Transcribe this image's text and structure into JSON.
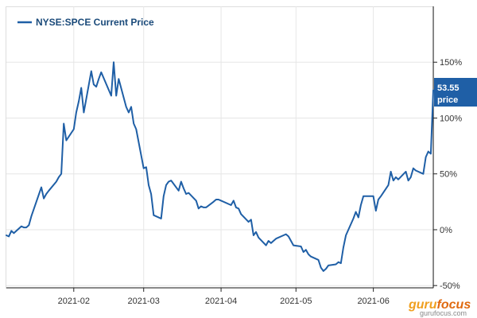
{
  "chart_data": {
    "type": "line",
    "title": "",
    "xlabel": "",
    "ylabel": "",
    "legend": "top-left",
    "grid": true,
    "x_range": [
      "2021-01-05",
      "2021-06-25"
    ],
    "ylim": [
      -0.52,
      2.0
    ],
    "x_ticks": [
      {
        "date": "2021-02-01",
        "label": "2021-02"
      },
      {
        "date": "2021-03-01",
        "label": "2021-03"
      },
      {
        "date": "2021-04-01",
        "label": "2021-04"
      },
      {
        "date": "2021-05-01",
        "label": "2021-05"
      },
      {
        "date": "2021-06-01",
        "label": "2021-06"
      }
    ],
    "y_ticks": [
      {
        "value": 1.5,
        "label": "150%"
      },
      {
        "value": 1.0,
        "label": "100%"
      },
      {
        "value": 0.5,
        "label": "50%"
      },
      {
        "value": 0.0,
        "label": "0%"
      },
      {
        "value": -0.5,
        "label": "-50%"
      }
    ],
    "series": [
      {
        "name": "NYSE:SPCE Current Price",
        "color": "#1f5fa6",
        "points": [
          [
            "2021-01-05",
            -0.05
          ],
          [
            "2021-01-06",
            -0.06
          ],
          [
            "2021-01-07",
            -0.01
          ],
          [
            "2021-01-08",
            -0.03
          ],
          [
            "2021-01-11",
            0.03
          ],
          [
            "2021-01-12",
            0.02
          ],
          [
            "2021-01-13",
            0.02
          ],
          [
            "2021-01-14",
            0.04
          ],
          [
            "2021-01-15",
            0.12
          ],
          [
            "2021-01-19",
            0.38
          ],
          [
            "2021-01-20",
            0.28
          ],
          [
            "2021-01-21",
            0.32
          ],
          [
            "2021-01-22",
            0.35
          ],
          [
            "2021-01-25",
            0.43
          ],
          [
            "2021-01-26",
            0.47
          ],
          [
            "2021-01-27",
            0.5
          ],
          [
            "2021-01-28",
            0.95
          ],
          [
            "2021-01-29",
            0.8
          ],
          [
            "2021-02-01",
            0.9
          ],
          [
            "2021-02-02",
            1.05
          ],
          [
            "2021-02-03",
            1.15
          ],
          [
            "2021-02-04",
            1.27
          ],
          [
            "2021-02-05",
            1.05
          ],
          [
            "2021-02-08",
            1.42
          ],
          [
            "2021-02-09",
            1.3
          ],
          [
            "2021-02-10",
            1.28
          ],
          [
            "2021-02-11",
            1.35
          ],
          [
            "2021-02-12",
            1.41
          ],
          [
            "2021-02-16",
            1.2
          ],
          [
            "2021-02-17",
            1.5
          ],
          [
            "2021-02-18",
            1.2
          ],
          [
            "2021-02-19",
            1.35
          ],
          [
            "2021-02-22",
            1.1
          ],
          [
            "2021-02-23",
            1.05
          ],
          [
            "2021-02-24",
            1.1
          ],
          [
            "2021-02-25",
            0.95
          ],
          [
            "2021-02-26",
            0.9
          ],
          [
            "2021-03-01",
            0.55
          ],
          [
            "2021-03-02",
            0.56
          ],
          [
            "2021-03-03",
            0.4
          ],
          [
            "2021-03-04",
            0.32
          ],
          [
            "2021-03-05",
            0.13
          ],
          [
            "2021-03-08",
            0.1
          ],
          [
            "2021-03-09",
            0.3
          ],
          [
            "2021-03-10",
            0.4
          ],
          [
            "2021-03-11",
            0.43
          ],
          [
            "2021-03-12",
            0.44
          ],
          [
            "2021-03-15",
            0.35
          ],
          [
            "2021-03-16",
            0.43
          ],
          [
            "2021-03-17",
            0.37
          ],
          [
            "2021-03-18",
            0.32
          ],
          [
            "2021-03-19",
            0.33
          ],
          [
            "2021-03-22",
            0.26
          ],
          [
            "2021-03-23",
            0.19
          ],
          [
            "2021-03-24",
            0.21
          ],
          [
            "2021-03-25",
            0.2
          ],
          [
            "2021-03-26",
            0.2
          ],
          [
            "2021-03-29",
            0.25
          ],
          [
            "2021-03-30",
            0.27
          ],
          [
            "2021-03-31",
            0.27
          ],
          [
            "2021-04-01",
            0.26
          ],
          [
            "2021-04-05",
            0.22
          ],
          [
            "2021-04-06",
            0.26
          ],
          [
            "2021-04-07",
            0.2
          ],
          [
            "2021-04-08",
            0.19
          ],
          [
            "2021-04-09",
            0.14
          ],
          [
            "2021-04-12",
            0.07
          ],
          [
            "2021-04-13",
            0.09
          ],
          [
            "2021-04-14",
            -0.05
          ],
          [
            "2021-04-15",
            -0.02
          ],
          [
            "2021-04-16",
            -0.07
          ],
          [
            "2021-04-19",
            -0.14
          ],
          [
            "2021-04-20",
            -0.1
          ],
          [
            "2021-04-21",
            -0.12
          ],
          [
            "2021-04-22",
            -0.1
          ],
          [
            "2021-04-23",
            -0.08
          ],
          [
            "2021-04-26",
            -0.05
          ],
          [
            "2021-04-27",
            -0.04
          ],
          [
            "2021-04-28",
            -0.06
          ],
          [
            "2021-04-29",
            -0.1
          ],
          [
            "2021-04-30",
            -0.14
          ],
          [
            "2021-05-03",
            -0.15
          ],
          [
            "2021-05-04",
            -0.2
          ],
          [
            "2021-05-05",
            -0.18
          ],
          [
            "2021-05-06",
            -0.22
          ],
          [
            "2021-05-07",
            -0.24
          ],
          [
            "2021-05-10",
            -0.27
          ],
          [
            "2021-05-11",
            -0.34
          ],
          [
            "2021-05-12",
            -0.37
          ],
          [
            "2021-05-13",
            -0.35
          ],
          [
            "2021-05-14",
            -0.32
          ],
          [
            "2021-05-17",
            -0.31
          ],
          [
            "2021-05-18",
            -0.29
          ],
          [
            "2021-05-19",
            -0.3
          ],
          [
            "2021-05-20",
            -0.16
          ],
          [
            "2021-05-21",
            -0.05
          ],
          [
            "2021-05-24",
            0.1
          ],
          [
            "2021-05-25",
            0.16
          ],
          [
            "2021-05-26",
            0.11
          ],
          [
            "2021-05-27",
            0.22
          ],
          [
            "2021-05-28",
            0.3
          ],
          [
            "2021-06-01",
            0.3
          ],
          [
            "2021-06-02",
            0.17
          ],
          [
            "2021-06-03",
            0.27
          ],
          [
            "2021-06-04",
            0.3
          ],
          [
            "2021-06-07",
            0.4
          ],
          [
            "2021-06-08",
            0.52
          ],
          [
            "2021-06-09",
            0.44
          ],
          [
            "2021-06-10",
            0.47
          ],
          [
            "2021-06-11",
            0.45
          ],
          [
            "2021-06-14",
            0.52
          ],
          [
            "2021-06-15",
            0.44
          ],
          [
            "2021-06-16",
            0.47
          ],
          [
            "2021-06-17",
            0.55
          ],
          [
            "2021-06-18",
            0.53
          ],
          [
            "2021-06-21",
            0.5
          ],
          [
            "2021-06-22",
            0.65
          ],
          [
            "2021-06-23",
            0.7
          ],
          [
            "2021-06-24",
            0.68
          ],
          [
            "2021-06-25",
            1.25
          ]
        ]
      }
    ],
    "annotations": [
      {
        "value": "53.55",
        "label": "price",
        "attached_to": "last-point"
      }
    ]
  },
  "watermark": {
    "brand_a": "guru",
    "brand_b": "focus",
    "url": "gurufocus.com"
  },
  "colors": {
    "line": "#1f5fa6",
    "price_tag": "#1f5fa6",
    "grid": "#e6e6e6",
    "axis": "#222222"
  }
}
